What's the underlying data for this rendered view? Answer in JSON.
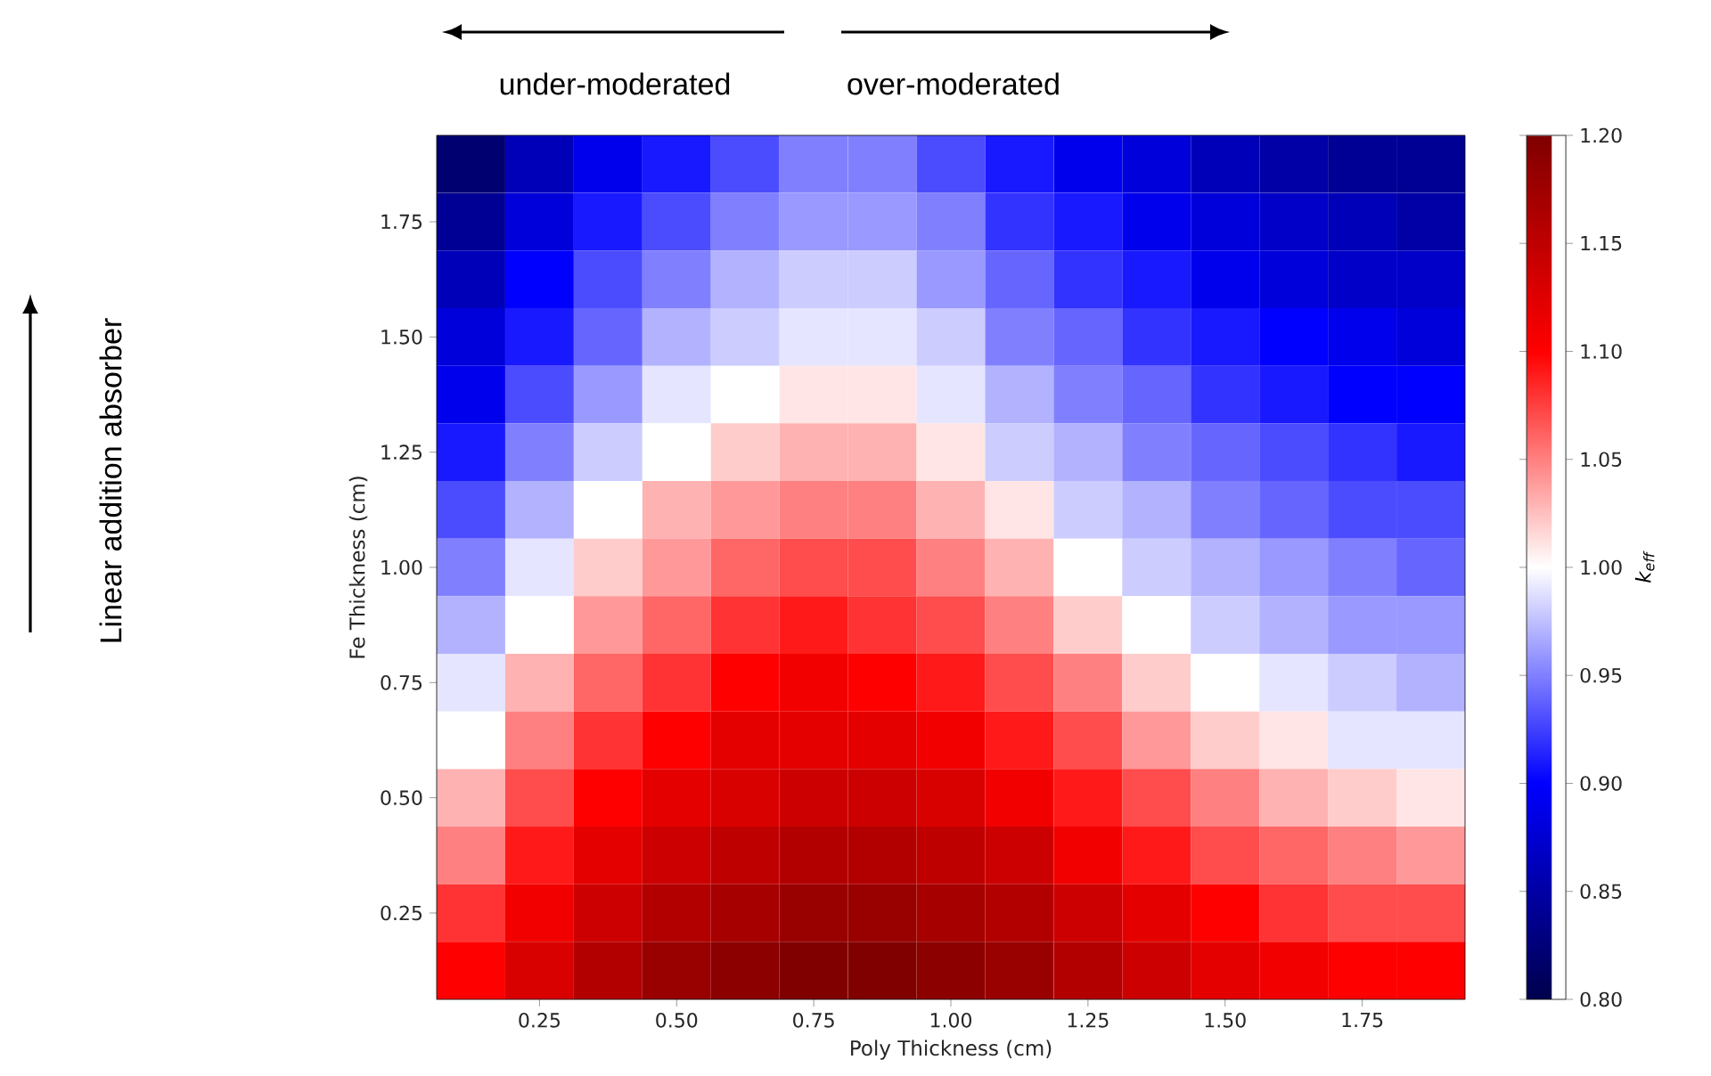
{
  "chart_data": {
    "type": "heatmap",
    "xlabel": "Poly Thickness (cm)",
    "ylabel": "Fe Thickness (cm)",
    "clabel": "k$_{eff}$",
    "annotations": [
      "under-moderated",
      "over-moderated",
      "Linear addition absorber"
    ],
    "categories": [
      null,
      "0.25",
      null,
      "0.50",
      null,
      "0.75",
      null,
      "1.00",
      null,
      "1.25",
      null,
      "1.50",
      null,
      "1.75",
      null
    ],
    "y_categories": [
      null,
      "1.75",
      null,
      "1.50",
      null,
      "1.25",
      null,
      "1.00",
      null,
      "0.75",
      null,
      "0.50",
      null,
      "0.25",
      null
    ],
    "clim": [
      0.8,
      1.2
    ],
    "cticks": [
      {
        "value": 0.8,
        "label": "0.80"
      },
      0.85,
      {
        "value": 0.9,
        "label": "0.90"
      },
      0.95,
      {
        "value": 1,
        "label": "1.00"
      },
      1.05,
      {
        "value": 1.1,
        "label": "1.10"
      },
      1.15,
      {
        "value": 1.2,
        "label": "1.20"
      }
    ],
    "cells": [
      [
        0.82,
        0.86,
        0.89,
        0.91,
        0.93,
        0.95,
        0.95,
        0.93,
        0.91,
        0.89,
        0.88,
        0.86,
        0.85,
        0.84,
        0.84
      ],
      [
        0.84,
        0.88,
        0.91,
        0.93,
        0.95,
        0.96,
        0.96,
        0.95,
        0.92,
        0.91,
        0.89,
        0.88,
        0.87,
        0.86,
        0.85
      ],
      [
        0.86,
        0.9,
        0.93,
        0.95,
        0.97,
        0.98,
        0.98,
        0.96,
        0.94,
        0.92,
        0.91,
        0.89,
        0.88,
        0.87,
        0.87
      ],
      [
        0.88,
        0.91,
        0.94,
        0.97,
        0.98,
        0.99,
        0.99,
        0.98,
        0.95,
        0.94,
        0.92,
        0.91,
        0.9,
        0.89,
        0.88
      ],
      [
        0.89,
        0.93,
        0.96,
        0.99,
        1.0,
        1.01,
        1.01,
        0.99,
        0.97,
        0.95,
        0.94,
        0.92,
        0.91,
        0.9,
        0.9
      ],
      [
        0.91,
        0.95,
        0.98,
        1.0,
        1.02,
        1.03,
        1.03,
        1.01,
        0.98,
        0.97,
        0.95,
        0.94,
        0.93,
        0.92,
        0.91
      ],
      [
        0.93,
        0.97,
        1.0,
        1.03,
        1.04,
        1.05,
        1.05,
        1.03,
        1.01,
        0.98,
        0.97,
        0.95,
        0.94,
        0.93,
        0.93
      ],
      [
        0.95,
        0.99,
        1.02,
        1.04,
        1.06,
        1.07,
        1.07,
        1.05,
        1.03,
        1.0,
        0.98,
        0.97,
        0.96,
        0.95,
        0.94
      ],
      [
        0.97,
        1.0,
        1.04,
        1.06,
        1.08,
        1.09,
        1.08,
        1.07,
        1.05,
        1.02,
        1.0,
        0.98,
        0.97,
        0.96,
        0.96
      ],
      [
        0.99,
        1.03,
        1.06,
        1.08,
        1.1,
        1.11,
        1.1,
        1.09,
        1.07,
        1.05,
        1.02,
        1.0,
        0.99,
        0.98,
        0.97
      ],
      [
        1.0,
        1.05,
        1.08,
        1.1,
        1.12,
        1.12,
        1.12,
        1.11,
        1.09,
        1.07,
        1.04,
        1.02,
        1.01,
        0.99,
        0.99
      ],
      [
        1.03,
        1.07,
        1.1,
        1.12,
        1.13,
        1.14,
        1.14,
        1.13,
        1.11,
        1.09,
        1.07,
        1.05,
        1.03,
        1.02,
        1.01
      ],
      [
        1.05,
        1.09,
        1.12,
        1.14,
        1.15,
        1.16,
        1.16,
        1.15,
        1.14,
        1.11,
        1.09,
        1.07,
        1.06,
        1.05,
        1.04
      ],
      [
        1.08,
        1.11,
        1.14,
        1.16,
        1.17,
        1.18,
        1.18,
        1.17,
        1.16,
        1.14,
        1.12,
        1.1,
        1.08,
        1.07,
        1.07
      ],
      [
        1.1,
        1.13,
        1.16,
        1.18,
        1.19,
        1.2,
        1.2,
        1.19,
        1.18,
        1.16,
        1.14,
        1.12,
        1.11,
        1.1,
        1.1
      ]
    ]
  }
}
